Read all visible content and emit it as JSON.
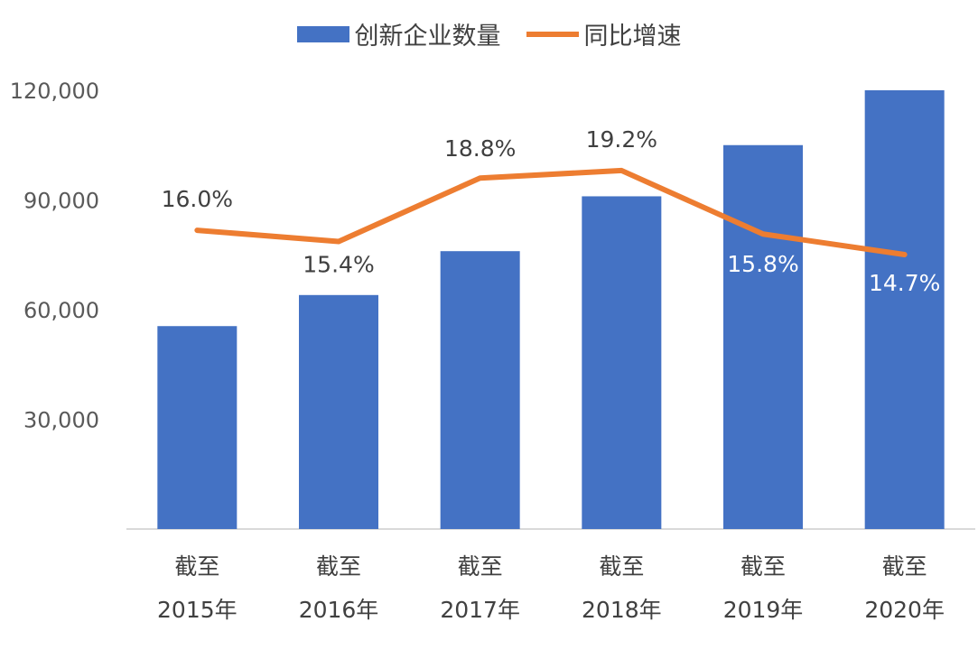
{
  "legend": [
    {
      "name": "创新企业数量",
      "color": "#4472C4",
      "kind": "bar"
    },
    {
      "name": "同比增速",
      "color": "#ED7D31",
      "kind": "line"
    }
  ],
  "chart_data": {
    "type": "bar",
    "categories": [
      [
        "截至",
        "2015年"
      ],
      [
        "截至",
        "2016年"
      ],
      [
        "截至",
        "2017年"
      ],
      [
        "截至",
        "2018年"
      ],
      [
        "截至",
        "2019年"
      ],
      [
        "截至",
        "2020年"
      ]
    ],
    "y_axis": {
      "min": 0,
      "max": 120000,
      "ticks": [
        30000,
        60000,
        90000,
        120000
      ],
      "tick_labels": [
        "30,000",
        "60,000",
        "90,000",
        "120,000"
      ]
    },
    "series": [
      {
        "name": "创新企业数量",
        "type": "bar",
        "color": "#4472C4",
        "values": [
          55500,
          64000,
          76000,
          91000,
          105000,
          120000
        ]
      },
      {
        "name": "同比增速",
        "type": "line",
        "color": "#ED7D31",
        "values": [
          16.0,
          15.4,
          18.8,
          19.2,
          15.8,
          14.7
        ],
        "labels": [
          "16.0%",
          "15.4%",
          "18.8%",
          "19.2%",
          "15.8%",
          "14.7%"
        ],
        "label_colors": [
          "#404040",
          "#404040",
          "#404040",
          "#404040",
          "#ffffff",
          "#ffffff"
        ],
        "secondary_range": [
          0,
          23.5
        ]
      }
    ],
    "grid": false,
    "legend_position": "top"
  }
}
